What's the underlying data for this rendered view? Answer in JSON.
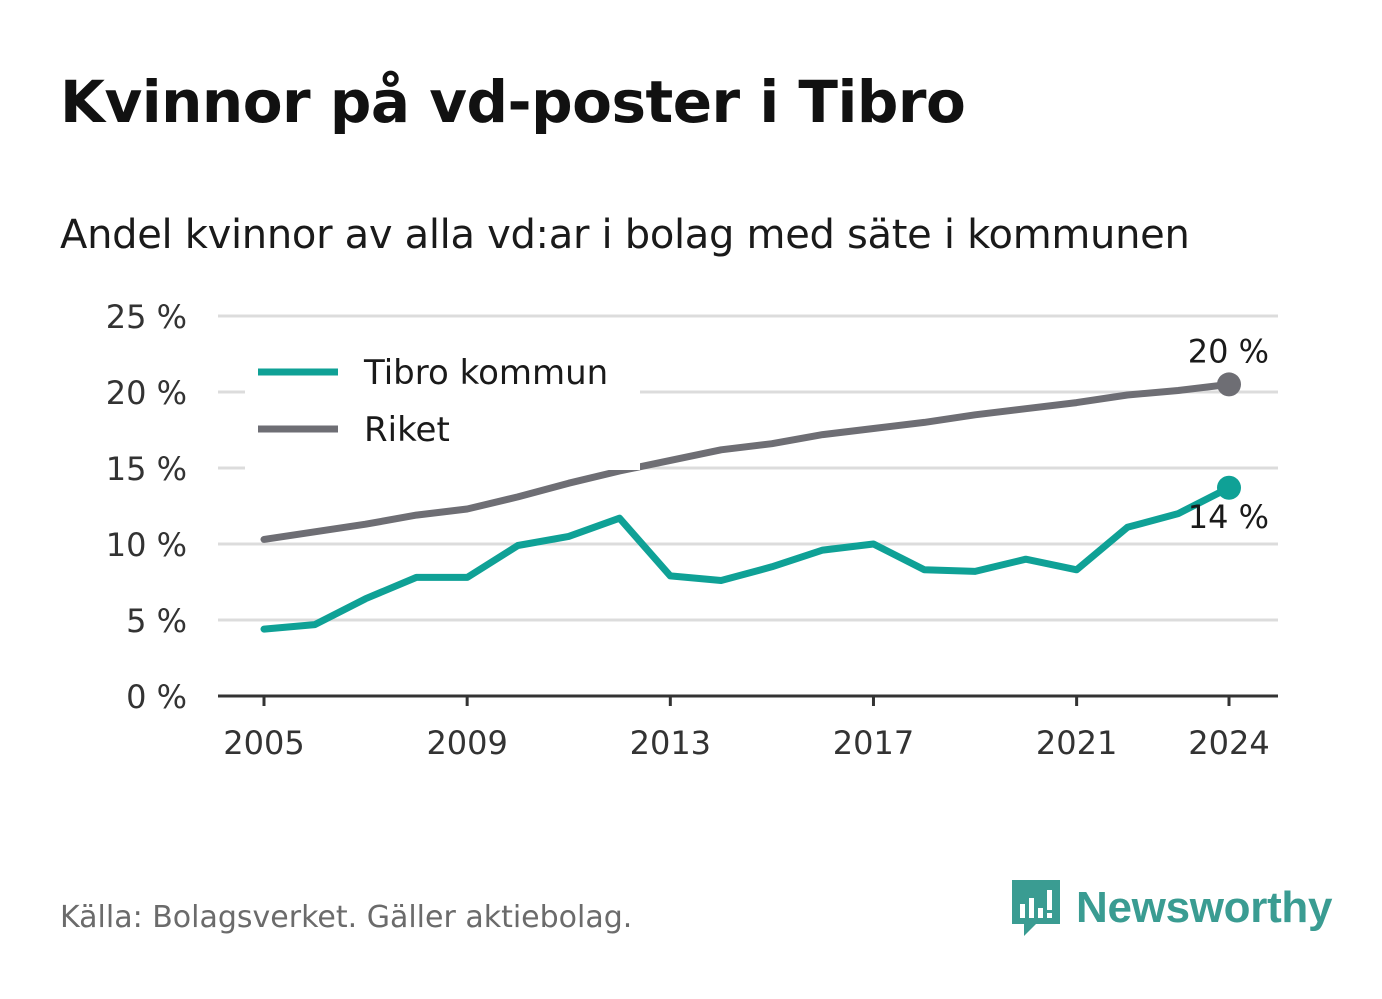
{
  "title": "Kvinnor på vd-poster i Tibro",
  "subtitle": "Andel kvinnor av alla vd:ar i bolag med säte i kommunen",
  "source": "Källa: Bolagsverket. Gäller aktiebolag.",
  "brand": {
    "name": "Newsworthy",
    "icon": "newsworthy-logo-icon",
    "color": "#3a9c92"
  },
  "colors": {
    "tibro": "#0fa196",
    "riket": "#6e6e74",
    "grid": "#dcdcdc",
    "axis": "#333333"
  },
  "chart_data": {
    "type": "line",
    "x": [
      2005,
      2006,
      2007,
      2008,
      2009,
      2010,
      2011,
      2012,
      2013,
      2014,
      2015,
      2016,
      2017,
      2018,
      2019,
      2020,
      2021,
      2022,
      2023,
      2024
    ],
    "series": [
      {
        "name": "Tibro kommun",
        "color": "#0fa196",
        "values": [
          4.4,
          4.7,
          6.4,
          7.8,
          7.8,
          9.9,
          10.5,
          11.7,
          7.9,
          7.6,
          8.5,
          9.6,
          10.0,
          8.3,
          8.2,
          9.0,
          8.3,
          11.1,
          12.0,
          13.7
        ]
      },
      {
        "name": "Riket",
        "color": "#6e6e74",
        "values": [
          10.3,
          10.8,
          11.3,
          11.9,
          12.3,
          13.1,
          14.0,
          14.8,
          15.5,
          16.2,
          16.6,
          17.2,
          17.6,
          18.0,
          18.5,
          18.9,
          19.3,
          19.8,
          20.1,
          20.5
        ]
      }
    ],
    "end_labels": [
      "14 %",
      "20 %"
    ],
    "x_ticks": [
      "2005",
      "2009",
      "2013",
      "2017",
      "2021",
      "2024"
    ],
    "y_ticks": [
      "0 %",
      "5 %",
      "10 %",
      "15 %",
      "20 %",
      "25 %"
    ],
    "ylim": [
      0,
      25
    ],
    "grid": true,
    "legend_position": "top-left"
  }
}
